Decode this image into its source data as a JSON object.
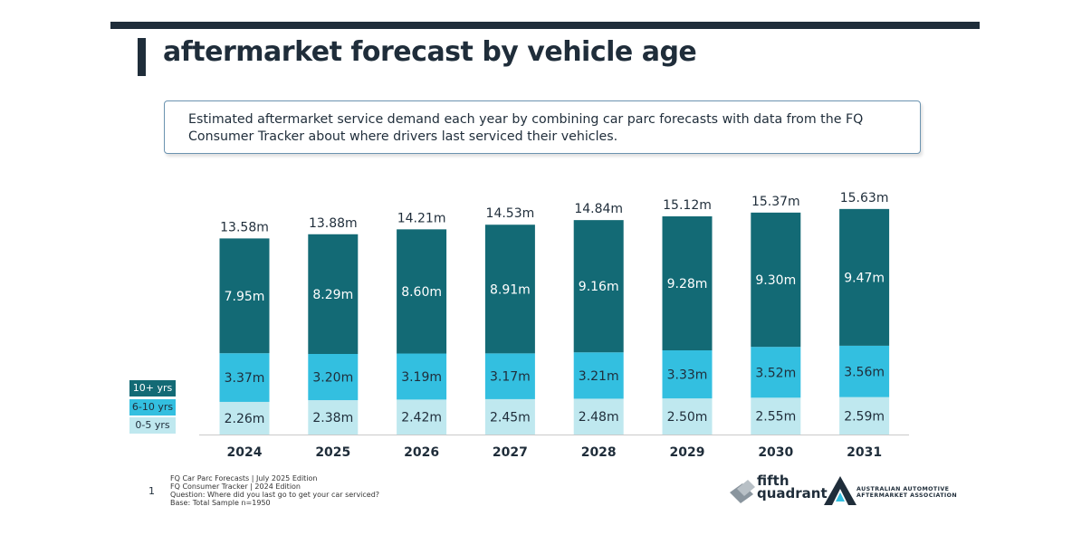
{
  "page": {
    "title": "aftermarket forecast by vehicle age",
    "description": "Estimated aftermarket service demand each year by combining car parc forecasts with data from the FQ Consumer Tracker about where drivers last serviced their vehicles.",
    "page_number": "1",
    "footnotes": [
      "FQ Car Parc Forecasts | July 2025 Edition",
      "FQ Consumer Tracker | 2024 Edition",
      "Question: Where did you last go to get your car serviced?",
      "Base: Total Sample n=1950"
    ],
    "logos": {
      "fifth_quadrant_line1": "fifth",
      "fifth_quadrant_line2": "quadrant",
      "aaaa_line1": "AUSTRALIAN AUTOMOTIVE",
      "aaaa_line2": "AFTERMARKET ASSOCIATION"
    }
  },
  "colors": {
    "dark": "#1f2d3a",
    "series_10plus": "#136a75",
    "series_6_10": "#33bfe0",
    "series_0_5": "#bfe8ef"
  },
  "chart_data": {
    "type": "bar",
    "stacked": true,
    "categories": [
      "2024",
      "2025",
      "2026",
      "2027",
      "2028",
      "2029",
      "2030",
      "2031"
    ],
    "series": [
      {
        "name": "0-5 yrs",
        "values": [
          2.26,
          2.38,
          2.42,
          2.45,
          2.48,
          2.5,
          2.55,
          2.59
        ],
        "labels": [
          "2.26m",
          "2.38m",
          "2.42m",
          "2.45m",
          "2.48m",
          "2.50m",
          "2.55m",
          "2.59m"
        ]
      },
      {
        "name": "6-10 yrs",
        "values": [
          3.37,
          3.2,
          3.19,
          3.17,
          3.21,
          3.33,
          3.52,
          3.56
        ],
        "labels": [
          "3.37m",
          "3.20m",
          "3.19m",
          "3.17m",
          "3.21m",
          "3.33m",
          "3.52m",
          "3.56m"
        ]
      },
      {
        "name": "10+ yrs",
        "values": [
          7.95,
          8.29,
          8.6,
          8.91,
          9.16,
          9.28,
          9.3,
          9.47
        ],
        "labels": [
          "7.95m",
          "8.29m",
          "8.60m",
          "8.91m",
          "9.16m",
          "9.28m",
          "9.30m",
          "9.47m"
        ]
      }
    ],
    "totals": [
      13.58,
      13.88,
      14.21,
      14.53,
      14.84,
      15.12,
      15.37,
      15.63
    ],
    "total_labels": [
      "13.58m",
      "13.88m",
      "14.21m",
      "14.53m",
      "14.84m",
      "15.12m",
      "15.37m",
      "15.63m"
    ],
    "legend": [
      "10+ yrs",
      "6-10 yrs",
      "0-5 yrs"
    ],
    "legend_position": "bottom-left",
    "grid": false
  }
}
